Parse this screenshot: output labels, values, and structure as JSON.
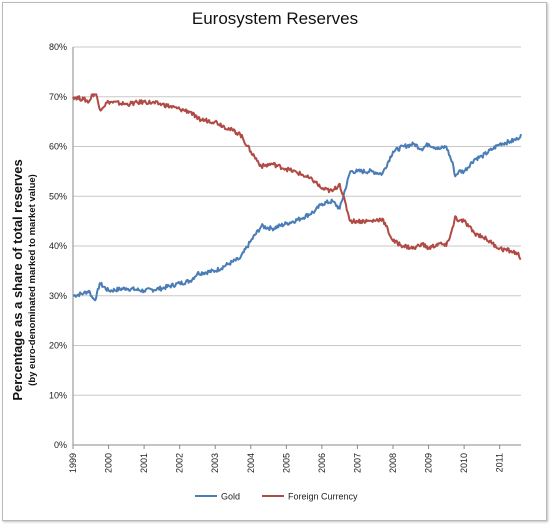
{
  "chart_data": {
    "type": "line",
    "title": "Eurosystem Reserves",
    "ylabel_line1": "Percentage as a share of total reserves",
    "ylabel_line2": "(by euro-denominated marked to market value)",
    "xlim": [
      1999,
      2011.6
    ],
    "ylim": [
      0,
      80
    ],
    "x_ticks": [
      "1999",
      "2000",
      "2001",
      "2002",
      "2003",
      "2004",
      "2005",
      "2006",
      "2007",
      "2008",
      "2009",
      "2010",
      "2011"
    ],
    "y_ticks": [
      "0%",
      "10%",
      "20%",
      "30%",
      "40%",
      "50%",
      "60%",
      "70%",
      "80%"
    ],
    "grid": true,
    "legend_position": "bottom",
    "series": [
      {
        "name": "Gold",
        "color": "#4a7db5",
        "x": [
          1999.0,
          1999.3,
          1999.45,
          1999.55,
          1999.65,
          1999.75,
          2000.0,
          2000.5,
          2001.0,
          2001.5,
          2002.0,
          2002.3,
          2002.5,
          2003.0,
          2003.4,
          2003.7,
          2004.0,
          2004.3,
          2004.6,
          2005.0,
          2005.4,
          2005.8,
          2006.0,
          2006.3,
          2006.5,
          2006.8,
          2007.0,
          2007.4,
          2007.7,
          2008.0,
          2008.3,
          2008.6,
          2008.8,
          2009.0,
          2009.3,
          2009.5,
          2009.7,
          2009.75,
          2009.85,
          2010.0,
          2010.3,
          2010.5,
          2010.8,
          2011.0,
          2011.3,
          2011.5,
          2011.6
        ],
        "y": [
          30.0,
          30.5,
          31.0,
          29.5,
          29.5,
          32.5,
          31.0,
          31.5,
          31.0,
          31.5,
          32.5,
          33.0,
          34.5,
          35.0,
          36.5,
          37.5,
          41.0,
          44.0,
          43.5,
          44.5,
          45.5,
          47.0,
          48.5,
          49.0,
          47.5,
          55.0,
          55.0,
          55.0,
          54.5,
          59.0,
          60.0,
          60.5,
          59.5,
          60.5,
          59.5,
          60.0,
          56.0,
          54.0,
          55.0,
          55.0,
          57.5,
          58.0,
          59.5,
          60.5,
          61.0,
          61.5,
          62.5
        ]
      },
      {
        "name": "Foreign Currency",
        "color": "#b04a45",
        "x": [
          1999.0,
          1999.3,
          1999.45,
          1999.55,
          1999.65,
          1999.75,
          2000.0,
          2000.5,
          2001.0,
          2001.5,
          2002.0,
          2002.3,
          2002.5,
          2003.0,
          2003.4,
          2003.7,
          2004.0,
          2004.3,
          2004.6,
          2005.0,
          2005.4,
          2005.8,
          2006.0,
          2006.3,
          2006.5,
          2006.8,
          2007.0,
          2007.4,
          2007.7,
          2008.0,
          2008.3,
          2008.6,
          2008.8,
          2009.0,
          2009.3,
          2009.5,
          2009.7,
          2009.75,
          2009.85,
          2010.0,
          2010.3,
          2010.5,
          2010.8,
          2011.0,
          2011.3,
          2011.5,
          2011.6
        ],
        "y": [
          70.0,
          69.5,
          69.0,
          70.5,
          70.5,
          67.5,
          69.0,
          68.5,
          69.0,
          68.5,
          67.5,
          67.0,
          65.5,
          65.0,
          63.5,
          62.5,
          59.0,
          56.0,
          56.5,
          55.5,
          54.5,
          53.0,
          51.5,
          51.0,
          52.5,
          45.0,
          45.0,
          45.0,
          45.5,
          41.0,
          40.0,
          39.5,
          40.5,
          39.5,
          40.5,
          40.0,
          44.0,
          46.0,
          45.0,
          45.0,
          42.5,
          42.0,
          40.5,
          39.5,
          39.0,
          38.5,
          37.5
        ]
      }
    ]
  }
}
